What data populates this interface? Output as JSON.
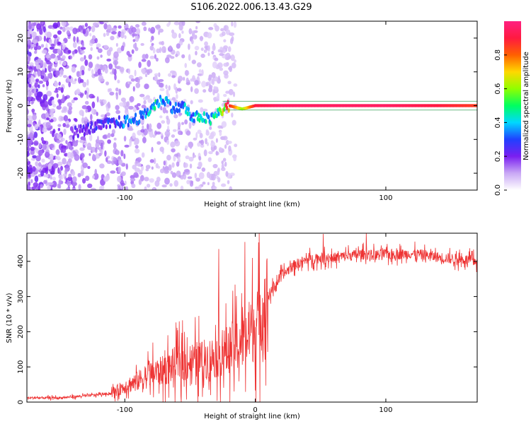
{
  "title": "S106.2022.006.13.43.G29",
  "chart_data": [
    {
      "type": "heatmap",
      "xlabel": "Height of straight line (km)",
      "ylabel": "Frequency (Hz)",
      "xlim": [
        -175,
        170
      ],
      "ylim": [
        -25,
        25
      ],
      "xticks": [
        -100,
        100
      ],
      "yticks": [
        -20,
        -10,
        0,
        10,
        20
      ],
      "grid": false,
      "colorbar": {
        "label": "Normalized spectral amplitude",
        "ticks": [
          0.0,
          0.2,
          0.4,
          0.6,
          0.8
        ],
        "range": [
          0,
          1
        ],
        "colors": [
          "#ffffff",
          "#c9a8f5",
          "#7a1ff0",
          "#2040ff",
          "#00d8ff",
          "#00ff60",
          "#90ff00",
          "#ffd800",
          "#ff6000",
          "#ff1a40",
          "#ff2080"
        ]
      },
      "ridge": {
        "x": [
          -140,
          -120,
          -105,
          -95,
          -85,
          -78,
          -70,
          -62,
          -55,
          -48,
          -42,
          -35,
          -28,
          -20,
          -10,
          0,
          20,
          60,
          100,
          140,
          170
        ],
        "freq": [
          -8,
          -6,
          -5,
          -4.5,
          -3,
          0,
          2,
          -1,
          0,
          -4,
          -3,
          -4.5,
          -2,
          0,
          -1,
          0,
          0,
          0,
          0,
          0,
          0
        ],
        "amplitude": [
          0.2,
          0.25,
          0.3,
          0.4,
          0.35,
          0.45,
          0.4,
          0.3,
          0.4,
          0.35,
          0.45,
          0.4,
          0.5,
          0.9,
          0.6,
          0.9,
          0.95,
          0.95,
          0.95,
          0.9,
          0.85
        ]
      }
    },
    {
      "type": "line",
      "xlabel": "Height of straight line (km)",
      "ylabel": "SNR (10 * v/v)",
      "xlim": [
        -175,
        170
      ],
      "ylim": [
        0,
        480
      ],
      "xticks": [
        -100,
        0,
        100
      ],
      "yticks": [
        0,
        100,
        200,
        300,
        400
      ],
      "grid": false,
      "series": [
        {
          "color": "#ee3333",
          "x": [
            -175,
            -150,
            -130,
            -110,
            -100,
            -90,
            -80,
            -70,
            -60,
            -50,
            -40,
            -30,
            -20,
            -10,
            0,
            10,
            20,
            30,
            40,
            50,
            60,
            70,
            80,
            90,
            100,
            110,
            120,
            130,
            140,
            150,
            160,
            170
          ],
          "y": [
            12,
            12,
            18,
            25,
            45,
            60,
            80,
            90,
            110,
            115,
            120,
            130,
            150,
            170,
            220,
            300,
            360,
            390,
            405,
            410,
            410,
            415,
            420,
            418,
            420,
            420,
            422,
            418,
            412,
            408,
            405,
            400
          ]
        }
      ],
      "annotations_peaks": [
        {
          "x": -28,
          "y": 435
        },
        {
          "x": -8,
          "y": 455
        },
        {
          "x": 52,
          "y": 478
        },
        {
          "x": 85,
          "y": 480
        }
      ]
    }
  ]
}
